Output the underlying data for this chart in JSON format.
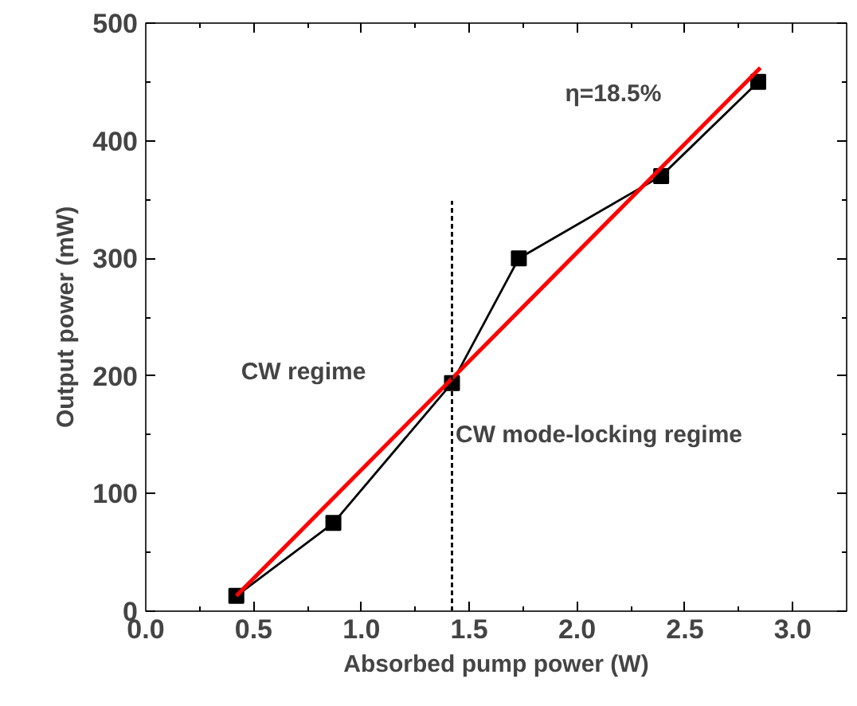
{
  "chart_data": {
    "type": "line",
    "xlabel": "Absorbed pump power (W)",
    "ylabel": "Output power (mW)",
    "xlim": [
      0,
      3.25
    ],
    "ylim": [
      0,
      500
    ],
    "xticks": [
      {
        "value": 0,
        "label": "0.0"
      },
      0.5,
      {
        "value": 1,
        "label": "1.0"
      },
      1.5,
      {
        "value": 2,
        "label": "2.0"
      },
      2.5,
      {
        "value": 3,
        "label": "3.0"
      }
    ],
    "yticks": [
      0,
      100,
      200,
      300,
      400,
      500
    ],
    "grid": false,
    "series": [
      {
        "color": "#000000",
        "marker": "square",
        "line_style": "solid",
        "x": [
          0.42,
          0.87,
          1.42,
          1.73,
          2.39,
          2.84
        ],
        "values": [
          13,
          75,
          194,
          300,
          370,
          450
        ]
      },
      {
        "color": "#ff0000",
        "marker": "none",
        "line_style": "solid",
        "x": [
          0.42,
          2.85
        ],
        "values": [
          13,
          462
        ]
      },
      {
        "color": "#000000",
        "marker": "none",
        "line_style": "dashed",
        "x": [
          1.42,
          1.42
        ],
        "values": [
          0,
          349
        ]
      }
    ],
    "annotations": [
      "CW regime",
      "CW mode-locking regime",
      "η=18.5%"
    ]
  }
}
